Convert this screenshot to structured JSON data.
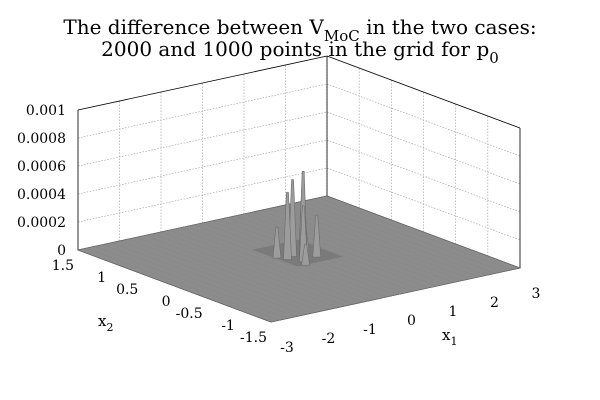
{
  "chart_data": {
    "type": "surface",
    "title_line1_a": "The difference between V",
    "title_line1_sub": "MoC",
    "title_line1_b": " in the two cases:",
    "title_line2_a": "2000 and 1000 points in the grid for p",
    "title_line2_sub": "0",
    "xlabel": "x",
    "xlabel_sub": "1",
    "ylabel": "x",
    "ylabel_sub": "2",
    "zlabel": "",
    "xlim": [
      -3,
      3
    ],
    "ylim": [
      -1.5,
      1.5
    ],
    "zlim": [
      0,
      0.001
    ],
    "x_ticks": [
      "-3",
      "-2",
      "-1",
      "0",
      "1",
      "2",
      "3"
    ],
    "y_ticks": [
      "1.5",
      "1",
      "0.5",
      "0",
      "-0.5",
      "-1",
      "-1.5"
    ],
    "z_ticks": [
      "0",
      "0.0002",
      "0.0004",
      "0.0006",
      "0.0008",
      "0.001"
    ],
    "grid": true,
    "surface_color": "#8c8c8c",
    "surface_baseline": 0,
    "peak_region": {
      "x_range": [
        -0.5,
        0.6
      ],
      "y_range": [
        -0.3,
        0.4
      ]
    },
    "peaks": [
      {
        "x": -0.2,
        "y": 0.05,
        "z": 0.00048
      },
      {
        "x": 0.0,
        "y": 0.1,
        "z": 0.00055
      },
      {
        "x": 0.1,
        "y": 0.0,
        "z": 0.00062
      },
      {
        "x": 0.25,
        "y": 0.1,
        "z": 0.00052
      },
      {
        "x": -0.05,
        "y": -0.1,
        "z": 0.0004
      },
      {
        "x": 0.35,
        "y": -0.05,
        "z": 0.0003
      },
      {
        "x": -0.3,
        "y": 0.15,
        "z": 0.00022
      },
      {
        "x": 0.15,
        "y": 0.25,
        "z": 0.00028
      },
      {
        "x": 0.45,
        "y": 0.2,
        "z": 0.00018
      },
      {
        "x": -0.15,
        "y": -0.2,
        "z": 0.00015
      }
    ]
  }
}
